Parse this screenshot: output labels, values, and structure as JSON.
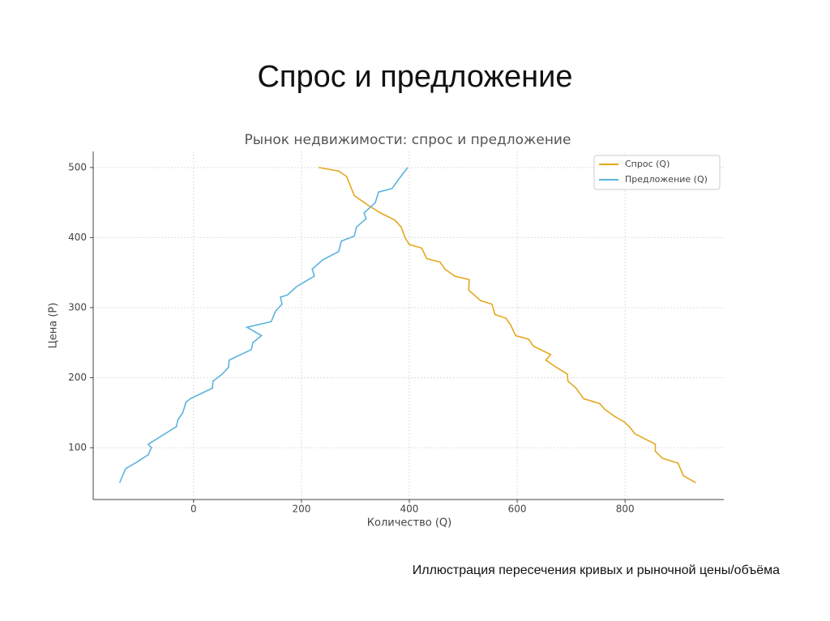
{
  "header": {
    "title": "Спрос и предложение"
  },
  "chart_data": {
    "type": "line",
    "title": "Рынок недвижимости: спрос и предложение",
    "x_label": "Количество (Q)",
    "y_label": "Цена (P)",
    "xlim": [
      -186,
      983
    ],
    "ylim": [
      26,
      523
    ],
    "xticks": [
      0,
      200,
      400,
      600,
      800
    ],
    "yticks": [
      100,
      200,
      300,
      400,
      500
    ],
    "grid": true,
    "legend": "upper right",
    "series": [
      {
        "name": "Спрос (Q)",
        "color": "#e3a81e",
        "x": [
          232,
          269,
          284,
          290,
          298,
          307,
          326,
          347,
          373,
          385,
          392,
          400,
          423,
          432,
          457,
          466,
          484,
          511,
          510,
          532,
          553,
          559,
          579,
          588,
          597,
          621,
          630,
          662,
          653,
          672,
          693,
          694,
          709,
          723,
          753,
          762,
          780,
          798,
          808,
          818,
          856,
          856,
          869,
          898,
          908,
          931
        ],
        "values": [
          500,
          495,
          487,
          475,
          460,
          455,
          445,
          435,
          425,
          415,
          400,
          390,
          385,
          370,
          365,
          355,
          345,
          340,
          325,
          310,
          305,
          290,
          285,
          275,
          260,
          255,
          245,
          233,
          225,
          215,
          205,
          195,
          185,
          170,
          163,
          155,
          145,
          137,
          130,
          120,
          105,
          95,
          85,
          78,
          60,
          50
        ]
      },
      {
        "name": "Предложение (Q)",
        "color": "#5ab4de",
        "x": [
          -137,
          -126,
          -104,
          -84,
          -78,
          -84,
          -32,
          -29,
          -20,
          -14,
          -6,
          35,
          36,
          53,
          65,
          66,
          107,
          110,
          126,
          99,
          144,
          152,
          164,
          161,
          174,
          191,
          224,
          220,
          239,
          269,
          274,
          298,
          302,
          320,
          316,
          337,
          343,
          368,
          382,
          397
        ],
        "values": [
          50,
          70,
          80,
          90,
          100,
          105,
          130,
          140,
          150,
          165,
          170,
          185,
          195,
          205,
          215,
          225,
          240,
          250,
          260,
          272,
          280,
          295,
          305,
          315,
          318,
          330,
          345,
          355,
          368,
          380,
          395,
          402,
          415,
          427,
          435,
          450,
          465,
          470,
          485,
          500
        ]
      }
    ]
  },
  "caption": "Иллюстрация пересечения кривых и рыночной цены/объёма"
}
